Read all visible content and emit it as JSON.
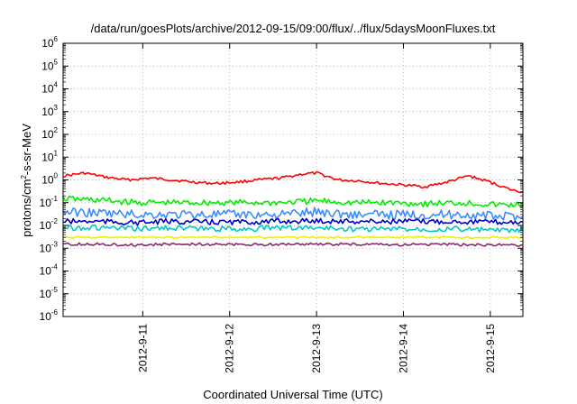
{
  "chart_data": {
    "type": "line",
    "title": "/data/run/goesPlots/archive/2012-09-15/09:00/flux/../flux/5daysMoonFluxes.txt",
    "xlabel": "Coordinated Universal Time (UTC)",
    "ylabel": {
      "base": "protons/cm",
      "sup": "2",
      "rest": "-s-sr-MeV"
    },
    "yscale": "log",
    "ylim": [
      1e-06,
      1000000.0
    ],
    "xlim": [
      "2012-09-10 02:00",
      "2012-09-15 09:00"
    ],
    "grid": true,
    "legend": "none",
    "y_ticks": [
      {
        "value": 1e-06,
        "base": "10",
        "exp": "-6"
      },
      {
        "value": 1e-05,
        "base": "10",
        "exp": "-5"
      },
      {
        "value": 0.0001,
        "base": "10",
        "exp": "-4"
      },
      {
        "value": 0.001,
        "base": "10",
        "exp": "-3"
      },
      {
        "value": 0.01,
        "base": "10",
        "exp": "-2"
      },
      {
        "value": 0.1,
        "base": "10",
        "exp": "-1"
      },
      {
        "value": 1.0,
        "base": "10",
        "exp": "0"
      },
      {
        "value": 10.0,
        "base": "10",
        "exp": "1"
      },
      {
        "value": 100.0,
        "base": "10",
        "exp": "2"
      },
      {
        "value": 1000.0,
        "base": "10",
        "exp": "3"
      },
      {
        "value": 10000.0,
        "base": "10",
        "exp": "4"
      },
      {
        "value": 100000.0,
        "base": "10",
        "exp": "5"
      },
      {
        "value": 1000000.0,
        "base": "10",
        "exp": "6"
      }
    ],
    "x_ticks": [
      {
        "value": "2012-09-11 00:00",
        "label": "2012-9-11"
      },
      {
        "value": "2012-09-12 00:00",
        "label": "2012-9-12"
      },
      {
        "value": "2012-09-13 00:00",
        "label": "2012-9-13"
      },
      {
        "value": "2012-09-14 00:00",
        "label": "2012-9-14"
      },
      {
        "value": "2012-09-15 00:00",
        "label": "2012-9-15"
      }
    ],
    "series": [
      {
        "color": "#ff0000",
        "x": [
          "2012-09-10 02:00",
          "2012-09-10 08:00",
          "2012-09-10 14:00",
          "2012-09-10 20:00",
          "2012-09-11 02:00",
          "2012-09-11 08:00",
          "2012-09-11 14:00",
          "2012-09-11 20:00",
          "2012-09-12 02:00",
          "2012-09-12 08:00",
          "2012-09-12 14:00",
          "2012-09-12 20:00",
          "2012-09-13 00:00",
          "2012-09-13 06:00",
          "2012-09-13 12:00",
          "2012-09-13 18:00",
          "2012-09-14 00:00",
          "2012-09-14 06:00",
          "2012-09-14 12:00",
          "2012-09-14 18:00",
          "2012-09-15 00:00",
          "2012-09-15 06:00",
          "2012-09-15 09:00"
        ],
        "y": [
          1.5,
          2.0,
          1.3,
          1.0,
          1.2,
          1.0,
          0.8,
          0.7,
          0.8,
          1.0,
          1.2,
          1.8,
          2.0,
          1.0,
          0.9,
          0.7,
          0.6,
          0.5,
          0.8,
          1.5,
          0.8,
          0.35,
          0.3
        ]
      },
      {
        "color": "#00ee00",
        "x": [
          "2012-09-10 02:00",
          "2012-09-10 12:00",
          "2012-09-10 22:00",
          "2012-09-11 08:00",
          "2012-09-11 18:00",
          "2012-09-12 04:00",
          "2012-09-12 14:00",
          "2012-09-13 00:00",
          "2012-09-13 10:00",
          "2012-09-13 20:00",
          "2012-09-14 06:00",
          "2012-09-14 16:00",
          "2012-09-15 02:00",
          "2012-09-15 09:00"
        ],
        "y": [
          0.15,
          0.13,
          0.1,
          0.1,
          0.1,
          0.1,
          0.1,
          0.12,
          0.1,
          0.1,
          0.09,
          0.1,
          0.08,
          0.08
        ]
      },
      {
        "color": "#3c8cff",
        "x": [
          "2012-09-10 02:00",
          "2012-09-10 12:00",
          "2012-09-10 22:00",
          "2012-09-11 08:00",
          "2012-09-11 18:00",
          "2012-09-12 04:00",
          "2012-09-12 14:00",
          "2012-09-13 00:00",
          "2012-09-13 10:00",
          "2012-09-13 20:00",
          "2012-09-14 06:00",
          "2012-09-14 16:00",
          "2012-09-15 02:00",
          "2012-09-15 09:00"
        ],
        "y": [
          0.04,
          0.035,
          0.03,
          0.03,
          0.03,
          0.03,
          0.03,
          0.04,
          0.03,
          0.03,
          0.03,
          0.03,
          0.025,
          0.025
        ]
      },
      {
        "color": "#0000c8",
        "x": [
          "2012-09-10 02:00",
          "2012-09-10 12:00",
          "2012-09-10 22:00",
          "2012-09-11 08:00",
          "2012-09-11 18:00",
          "2012-09-12 04:00",
          "2012-09-12 14:00",
          "2012-09-13 00:00",
          "2012-09-13 10:00",
          "2012-09-13 20:00",
          "2012-09-14 06:00",
          "2012-09-14 16:00",
          "2012-09-15 02:00",
          "2012-09-15 09:00"
        ],
        "y": [
          0.015,
          0.015,
          0.013,
          0.015,
          0.014,
          0.014,
          0.015,
          0.016,
          0.015,
          0.015,
          0.015,
          0.015,
          0.014,
          0.014
        ]
      },
      {
        "color": "#00c8c8",
        "x": [
          "2012-09-10 02:00",
          "2012-09-10 12:00",
          "2012-09-10 22:00",
          "2012-09-11 08:00",
          "2012-09-11 18:00",
          "2012-09-12 04:00",
          "2012-09-12 14:00",
          "2012-09-13 00:00",
          "2012-09-13 10:00",
          "2012-09-13 20:00",
          "2012-09-14 06:00",
          "2012-09-14 16:00",
          "2012-09-15 02:00",
          "2012-09-15 09:00"
        ],
        "y": [
          0.008,
          0.008,
          0.007,
          0.008,
          0.007,
          0.007,
          0.008,
          0.008,
          0.007,
          0.007,
          0.007,
          0.007,
          0.006,
          0.006
        ]
      },
      {
        "color": "#f0f000",
        "x": [
          "2012-09-10 02:00",
          "2012-09-10 12:00",
          "2012-09-10 22:00",
          "2012-09-11 08:00",
          "2012-09-11 18:00",
          "2012-09-12 04:00",
          "2012-09-12 14:00",
          "2012-09-13 00:00",
          "2012-09-13 10:00",
          "2012-09-13 20:00",
          "2012-09-14 06:00",
          "2012-09-14 16:00",
          "2012-09-15 02:00",
          "2012-09-15 09:00"
        ],
        "y": [
          0.003,
          0.003,
          0.003,
          0.003,
          0.003,
          0.003,
          0.003,
          0.003,
          0.003,
          0.003,
          0.003,
          0.003,
          0.003,
          0.003
        ]
      },
      {
        "color": "#8c2a6e",
        "x": [
          "2012-09-10 02:00",
          "2012-09-10 12:00",
          "2012-09-10 22:00",
          "2012-09-11 08:00",
          "2012-09-11 18:00",
          "2012-09-12 04:00",
          "2012-09-12 14:00",
          "2012-09-13 00:00",
          "2012-09-13 10:00",
          "2012-09-13 20:00",
          "2012-09-14 06:00",
          "2012-09-14 16:00",
          "2012-09-15 02:00",
          "2012-09-15 09:00"
        ],
        "y": [
          0.0015,
          0.0015,
          0.0014,
          0.0015,
          0.0015,
          0.0014,
          0.0015,
          0.0015,
          0.0015,
          0.0014,
          0.0015,
          0.0014,
          0.0014,
          0.0014
        ]
      }
    ]
  }
}
